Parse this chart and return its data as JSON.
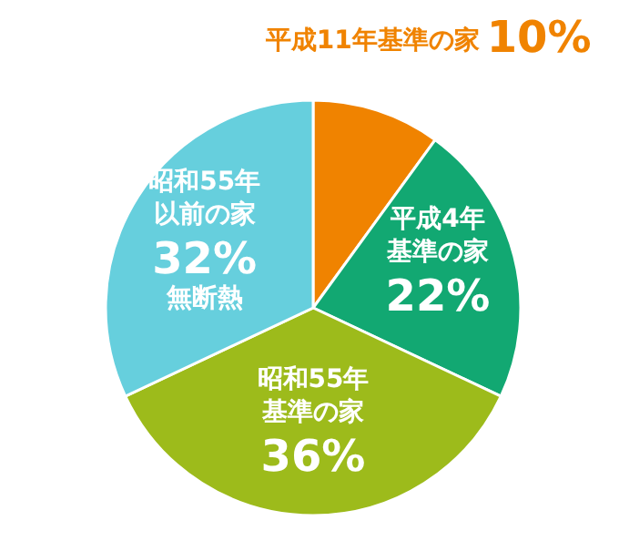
{
  "chart_data": {
    "type": "pie",
    "categories": [
      "平成11年基準の家",
      "平成4年基準の家",
      "昭和55年基準の家",
      "昭和55年以前の家"
    ],
    "values": [
      10,
      22,
      36,
      32
    ],
    "colors": [
      "#f08300",
      "#12a872",
      "#9dbb1b",
      "#66cfdd"
    ],
    "value_labels": [
      "10%",
      "22%",
      "36%",
      "32%"
    ],
    "annotations": [
      {
        "text": "無断熱",
        "x": "昭和55年以前の家"
      }
    ]
  }
}
